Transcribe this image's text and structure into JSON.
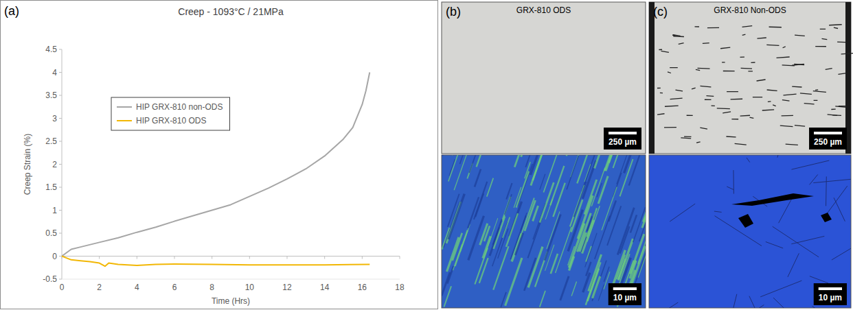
{
  "chart_data": {
    "type": "line",
    "title": "Creep - 1093°C / 21MPa",
    "x_label": "Time (Hrs)",
    "y_label": "Creep Strain (%)",
    "xlim": [
      0,
      18
    ],
    "xticks": [
      0,
      2,
      4,
      6,
      8,
      10,
      12,
      14,
      16,
      18
    ],
    "ylim": [
      -0.5,
      4.5
    ],
    "yticks": [
      -0.5,
      0,
      0.5,
      1,
      1.5,
      2,
      2.5,
      3,
      3.5,
      4,
      4.5
    ],
    "grid": false,
    "legend": "upper left",
    "series": [
      {
        "name": "HIP GRX-810 non-ODS",
        "color": "#a6a6a6",
        "line_style": "solid",
        "x": [
          0,
          0.5,
          1,
          2,
          3,
          4,
          5,
          6,
          7,
          8,
          9,
          10,
          11,
          12,
          13,
          14,
          15,
          15.5,
          16,
          16.2,
          16.4
        ],
        "values": [
          0,
          0.15,
          0.2,
          0.3,
          0.4,
          0.52,
          0.63,
          0.76,
          0.88,
          1.0,
          1.12,
          1.3,
          1.48,
          1.68,
          1.9,
          2.18,
          2.55,
          2.8,
          3.3,
          3.6,
          4.0
        ]
      },
      {
        "name": "HIP GRX-810 ODS",
        "color": "#f2b705",
        "line_style": "solid",
        "x": [
          0,
          0.5,
          1,
          1.5,
          2,
          2.3,
          2.5,
          3,
          4,
          5,
          6,
          8,
          10,
          12,
          14,
          16.4
        ],
        "values": [
          0,
          -0.08,
          -0.1,
          -0.12,
          -0.15,
          -0.22,
          -0.15,
          -0.18,
          -0.2,
          -0.18,
          -0.17,
          -0.18,
          -0.19,
          -0.19,
          -0.19,
          -0.18
        ]
      }
    ]
  },
  "figure": {
    "panels": [
      {
        "label": "(a)"
      },
      {
        "label": "(b)",
        "title": "GRX-810 ODS",
        "scale_bars": [
          "250 µm",
          "10 µm"
        ]
      },
      {
        "label": "(c)",
        "title": "GRX-810 Non-ODS",
        "scale_bars": [
          "250 µm",
          "10 µm"
        ]
      }
    ]
  }
}
